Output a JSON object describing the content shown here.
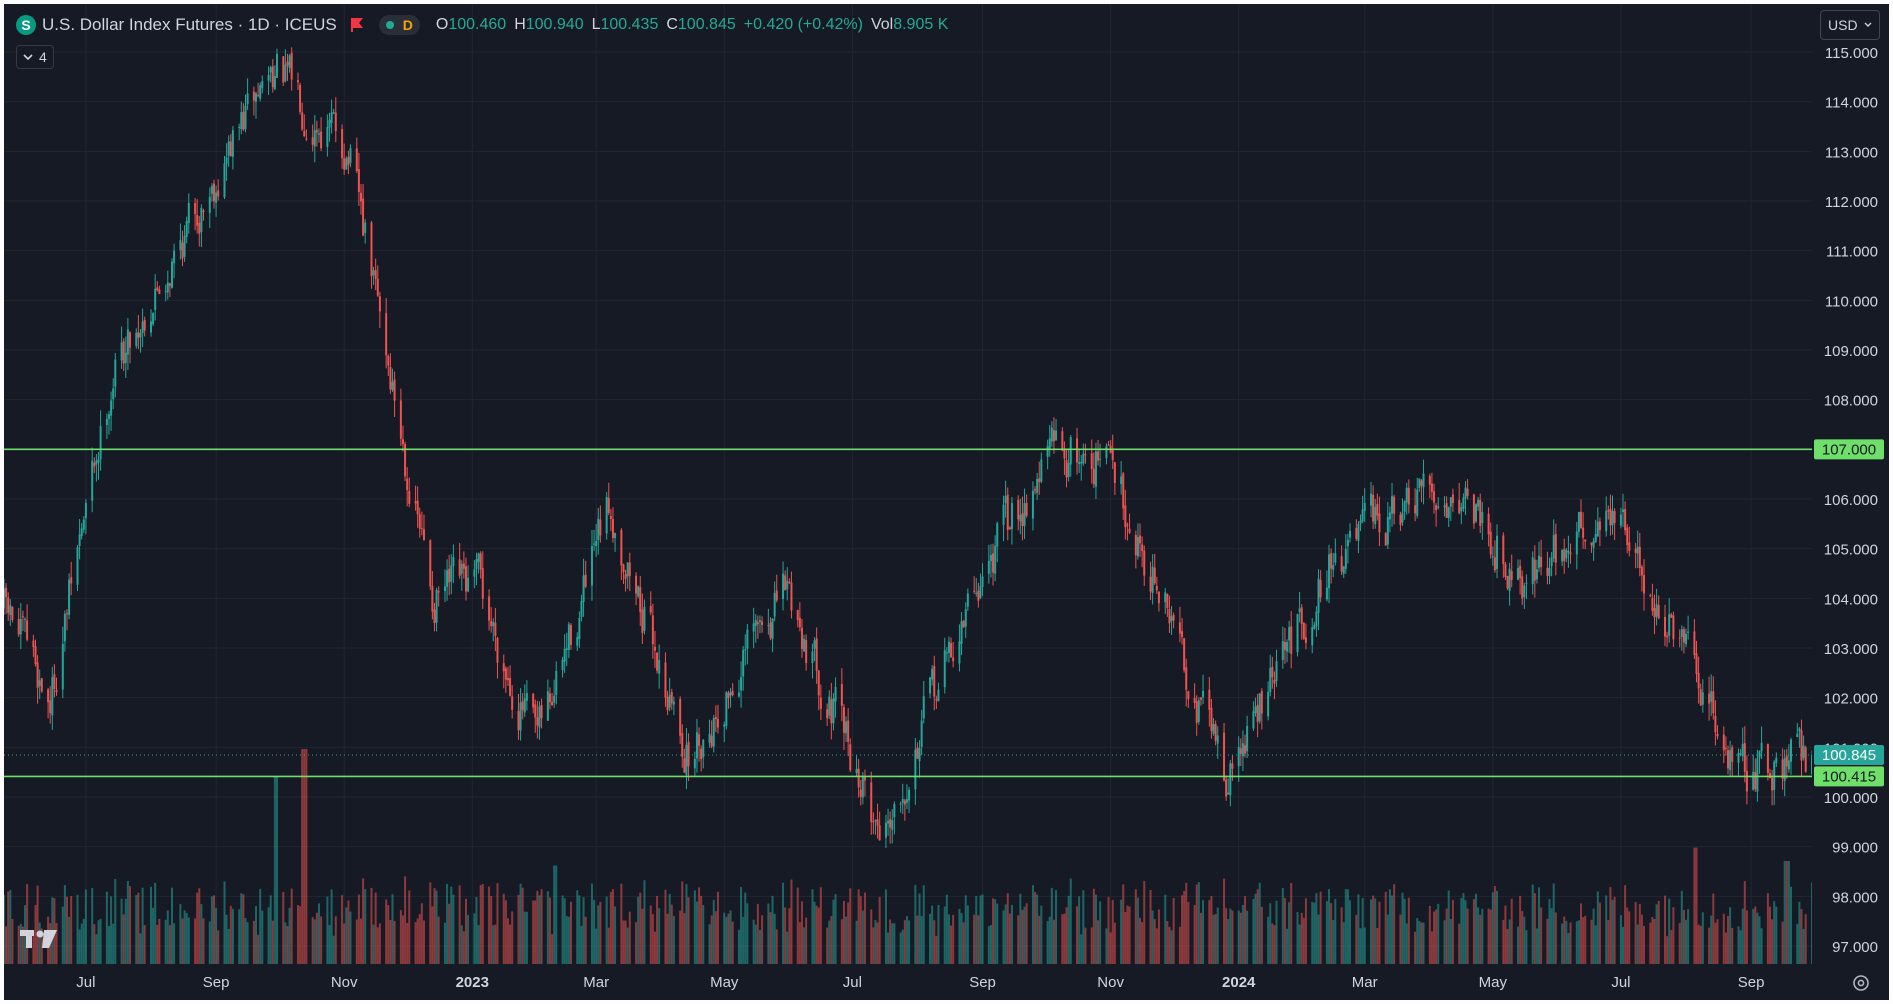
{
  "header": {
    "symbol_icon": "S",
    "title": "U.S. Dollar Index Futures · 1D · ICEUS",
    "flag_icon": "flag-icon",
    "status_badge": "D",
    "ohlc": {
      "o_label": "O",
      "o_value": "100.460",
      "h_label": "H",
      "h_value": "100.940",
      "l_label": "L",
      "l_value": "100.435",
      "c_label": "C",
      "c_value": "100.845",
      "change": "+0.420 (+0.42%)",
      "vol_label": "Vol",
      "vol_value": "8.905 K"
    },
    "collapse_count": "4",
    "currency": "USD"
  },
  "colors": {
    "up": "#26a69a",
    "down": "#ef5350",
    "line": "#6ee06a",
    "background": "#161a25",
    "grid": "#232632",
    "text": "#d1d4dc"
  },
  "chart_data": {
    "type": "candlestick",
    "title": "U.S. Dollar Index Futures · 1D · ICEUS",
    "x_ticks": [
      "Jul",
      "Sep",
      "Nov",
      "2023",
      "Mar",
      "May",
      "Jul",
      "Sep",
      "Nov",
      "2024",
      "Mar",
      "May",
      "Jul",
      "Sep"
    ],
    "y_ticks": [
      "115.000",
      "114.000",
      "113.000",
      "112.000",
      "111.000",
      "110.000",
      "109.000",
      "108.000",
      "107.000",
      "106.000",
      "105.000",
      "104.000",
      "103.000",
      "102.000",
      "101.000",
      "100.000",
      "99.000",
      "98.000",
      "97.000"
    ],
    "ylim": [
      96.6,
      115.2
    ],
    "x_range": [
      "2022-05-23",
      "2024-09-30"
    ],
    "grid": true,
    "series": [
      {
        "name": "price",
        "dates": [
          "2022-05-23",
          "2022-06-14",
          "2022-07-14",
          "2022-09-28",
          "2022-11-03",
          "2022-12-13",
          "2023-01-04",
          "2023-02-01",
          "2023-03-08",
          "2023-04-14",
          "2023-05-31",
          "2023-07-14",
          "2023-09-01",
          "2023-10-03",
          "2023-11-01",
          "2023-12-27",
          "2024-02-14",
          "2024-04-16",
          "2024-05-16",
          "2024-06-26",
          "2024-08-27",
          "2024-09-24"
        ],
        "close": [
          103.8,
          102.0,
          108.6,
          114.7,
          113.0,
          104.0,
          104.2,
          101.0,
          105.8,
          100.8,
          104.2,
          99.3,
          104.5,
          107.0,
          106.8,
          100.4,
          104.8,
          106.3,
          104.4,
          105.8,
          100.5,
          100.85
        ]
      },
      {
        "name": "volume",
        "peak_dates": [
          "2022-09-30",
          "2022-10-13",
          "2023-02-10",
          "2024-08-05",
          "2024-09-18"
        ],
        "peak_values": [
          42,
          48,
          22,
          26,
          23
        ],
        "unit": "K"
      }
    ],
    "horizontal_lines": [
      {
        "price": 107.0,
        "label": "107.000"
      },
      {
        "price": 100.415,
        "label": "100.415"
      }
    ],
    "last_price": {
      "price": 100.845,
      "label": "100.845"
    },
    "settings_icon": "gear-icon",
    "logo": "TV"
  }
}
